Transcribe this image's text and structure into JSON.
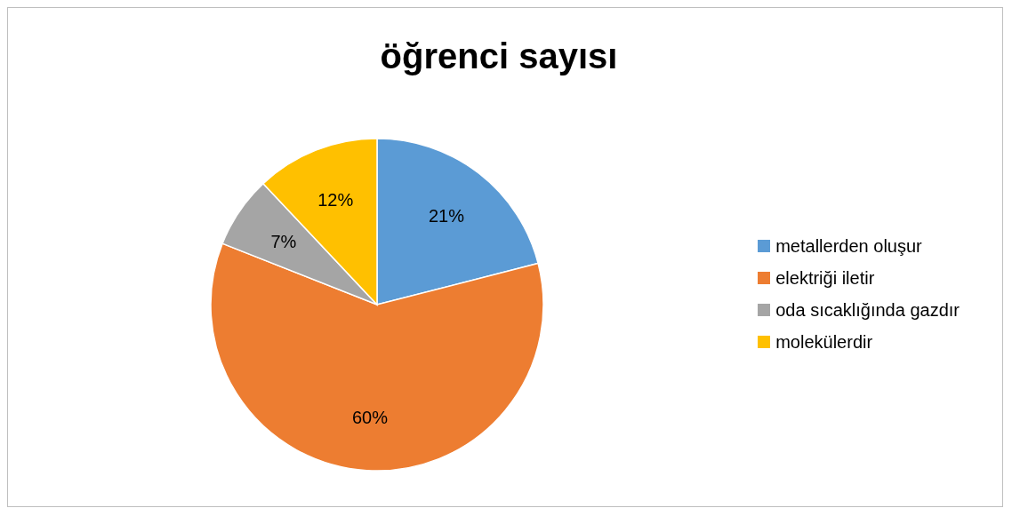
{
  "chart_data": {
    "type": "pie",
    "title": "öğrenci sayısı",
    "categories": [
      "metallerden oluşur",
      "elektriği iletir",
      "oda sıcaklığında gazdır",
      "molekülerdir"
    ],
    "values": [
      21,
      60,
      7,
      12
    ],
    "colors": [
      "#5b9bd5",
      "#ed7d31",
      "#a5a5a5",
      "#ffc000"
    ],
    "value_labels": [
      "21%",
      "60%",
      "7%",
      "12%"
    ],
    "legend": "right"
  }
}
